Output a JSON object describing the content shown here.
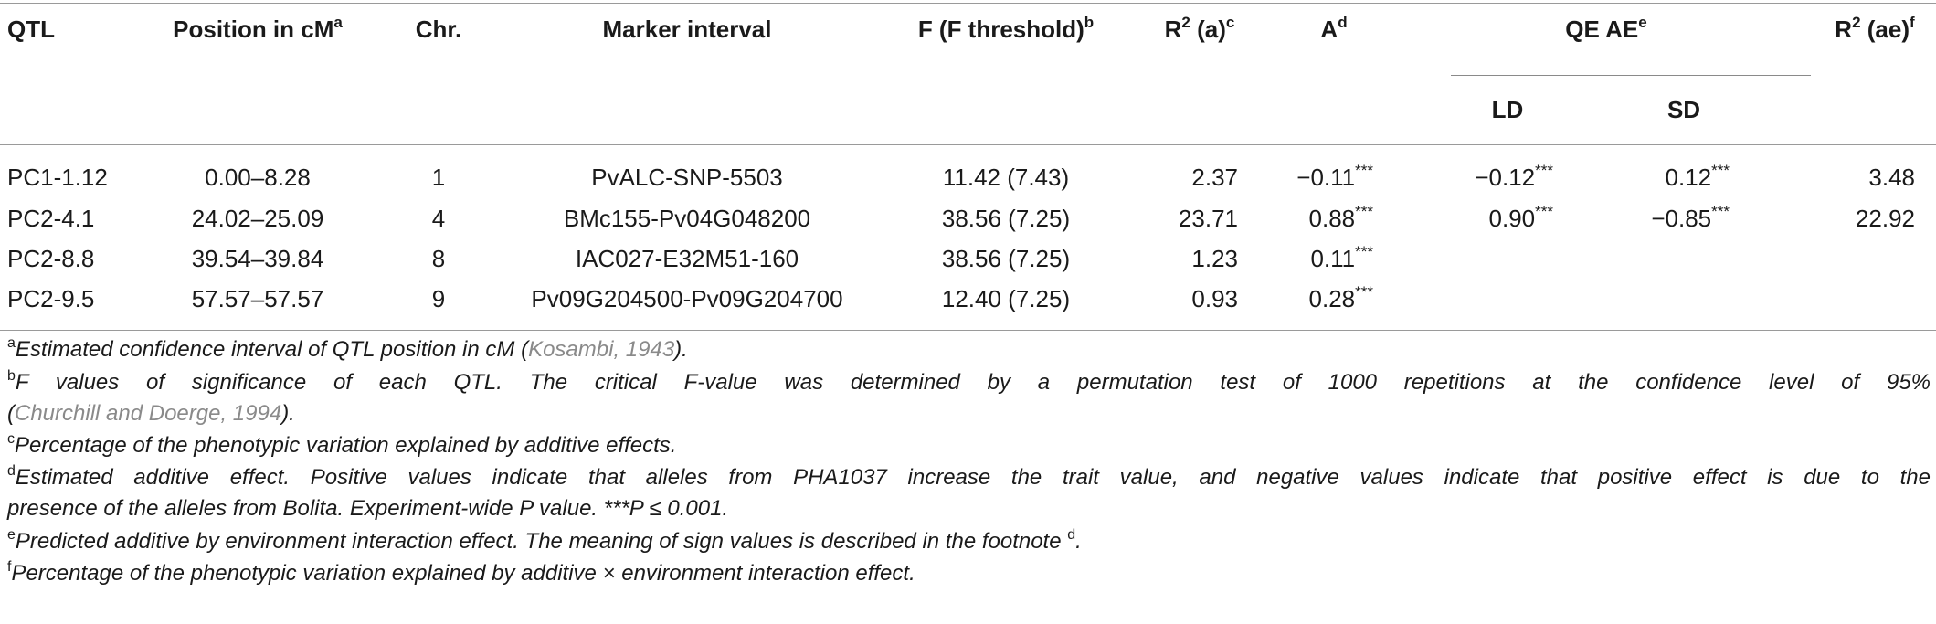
{
  "headers": {
    "qtl": "QTL",
    "position": "Position in cM",
    "position_sup": "a",
    "chr": "Chr.",
    "marker": "Marker interval",
    "f": "F (F threshold)",
    "f_sup": "b",
    "r2a_pre": "R",
    "r2a_exp": "2",
    "r2a_post": " (a)",
    "r2a_sup": "c",
    "a": "A",
    "a_sup": "d",
    "qeae": "QE AE",
    "qeae_sup": "e",
    "r2ae_pre": "R",
    "r2ae_exp": "2",
    "r2ae_post": " (ae)",
    "r2ae_sup": "f",
    "ld": "LD",
    "sd": "SD"
  },
  "rows": [
    {
      "qtl": "PC1-1.12",
      "position": "0.00–8.28",
      "chr": "1",
      "marker": "PvALC-SNP-5503",
      "f": "11.42 (7.43)",
      "r2a": "2.37",
      "a": "−0.11",
      "a_sig": "***",
      "ld": "−0.12",
      "ld_sig": "***",
      "sd": "0.12",
      "sd_sig": "***",
      "r2ae": "3.48"
    },
    {
      "qtl": "PC2-4.1",
      "position": "24.02–25.09",
      "chr": "4",
      "marker": "BMc155-Pv04G048200",
      "f": "38.56 (7.25)",
      "r2a": "23.71",
      "a": "0.88",
      "a_sig": "***",
      "ld": "0.90",
      "ld_sig": "***",
      "sd": "−0.85",
      "sd_sig": "***",
      "r2ae": "22.92"
    },
    {
      "qtl": "PC2-8.8",
      "position": "39.54–39.84",
      "chr": "8",
      "marker": "IAC027-E32M51-160",
      "f": "38.56 (7.25)",
      "r2a": "1.23",
      "a": "0.11",
      "a_sig": "***",
      "ld": "",
      "ld_sig": "",
      "sd": "",
      "sd_sig": "",
      "r2ae": ""
    },
    {
      "qtl": "PC2-9.5",
      "position": "57.57–57.57",
      "chr": "9",
      "marker": "Pv09G204500-Pv09G204700",
      "f": "12.40 (7.25)",
      "r2a": "0.93",
      "a": "0.28",
      "a_sig": "***",
      "ld": "",
      "ld_sig": "",
      "sd": "",
      "sd_sig": "",
      "r2ae": ""
    }
  ],
  "footnotes": {
    "a_mark": "a",
    "a_text": "Estimated confidence interval of QTL position in cM (",
    "a_cite": "Kosambi, 1943",
    "a_end": ").",
    "b_mark": "b",
    "b_line1": "F values of significance of each QTL. The critical F-value was determined by a permutation test of 1000 repetitions at the confidence level of 95%",
    "b_cite": "Churchill and Doerge, 1994",
    "b_open": "(",
    "b_end": ").",
    "c_mark": "c",
    "c_text": "Percentage of the phenotypic variation explained by additive effects.",
    "d_mark": "d",
    "d_line1": "Estimated additive effect. Positive values indicate that alleles from PHA1037 increase the trait value, and negative values indicate that positive effect is due to the",
    "d_line2": "presence of the alleles from Bolita. Experiment-wide P value. ***P ≤ 0.001.",
    "e_mark": "e",
    "e_text": "Predicted additive by environment interaction effect. The meaning of sign values is described in the footnote ",
    "e_ref": "d",
    "e_end": ".",
    "f_mark": "f",
    "f_text": "Percentage of the phenotypic variation explained by additive × environment interaction effect."
  }
}
